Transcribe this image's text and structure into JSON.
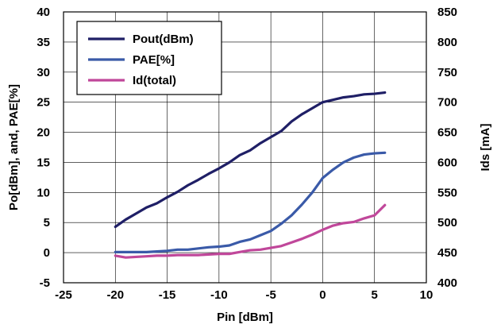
{
  "chart_data": {
    "type": "line",
    "xlabel": "Pin [dBm]",
    "ylabel": "Po[dBm], and, PAE[%]",
    "y2label": "Ids [mA]",
    "xlim": [
      -25,
      10
    ],
    "ylim": [
      -5,
      40
    ],
    "y2lim": [
      400,
      850
    ],
    "x_ticks": [
      "-25",
      "-20",
      "-15",
      "-10",
      "-5",
      "0",
      "5",
      "10"
    ],
    "y_ticks": [
      "-5",
      "0",
      "5",
      "10",
      "15",
      "20",
      "25",
      "30",
      "35",
      "40"
    ],
    "y2_ticks": [
      "400",
      "450",
      "500",
      "550",
      "600",
      "650",
      "700",
      "750",
      "800",
      "850"
    ],
    "grid": true,
    "legend_position": "top-left",
    "series": [
      {
        "name": "Pout(dBm)",
        "axis": "left",
        "color": "#1f1f66",
        "x": [
          -20,
          -19,
          -18,
          -17,
          -16,
          -15,
          -14,
          -13,
          -12,
          -11,
          -10,
          -9,
          -8,
          -7,
          -6,
          -5,
          -4,
          -3,
          -2,
          -1,
          0,
          1,
          2,
          3,
          4,
          5,
          6
        ],
        "y": [
          4.3,
          5.5,
          6.5,
          7.5,
          8.2,
          9.2,
          10.1,
          11.2,
          12.1,
          13.1,
          14.0,
          15.0,
          16.2,
          17.0,
          18.2,
          19.2,
          20.2,
          21.8,
          23.0,
          24.0,
          25.0,
          25.4,
          25.8,
          26.0,
          26.3,
          26.4,
          26.6
        ]
      },
      {
        "name": "PAE[%]",
        "axis": "left",
        "color": "#3a5aa8",
        "x": [
          -20,
          -19,
          -18,
          -17,
          -16,
          -15,
          -14,
          -13,
          -12,
          -11,
          -10,
          -9,
          -8,
          -7,
          -6,
          -5,
          -4,
          -3,
          -2,
          -1,
          0,
          1,
          2,
          3,
          4,
          5,
          6
        ],
        "y": [
          0.1,
          0.1,
          0.1,
          0.1,
          0.2,
          0.3,
          0.5,
          0.5,
          0.7,
          0.9,
          1.0,
          1.2,
          1.8,
          2.2,
          2.9,
          3.6,
          4.8,
          6.2,
          8.0,
          10.0,
          12.4,
          13.8,
          15.0,
          15.8,
          16.3,
          16.5,
          16.6
        ]
      },
      {
        "name": "Id(total)",
        "axis": "right",
        "color": "#c0479a",
        "x": [
          -20,
          -19,
          -18,
          -17,
          -16,
          -15,
          -14,
          -13,
          -12,
          -11,
          -10,
          -9,
          -8,
          -7,
          -6,
          -5,
          -4,
          -3,
          -2,
          -1,
          0,
          1,
          2,
          3,
          4,
          5,
          6
        ],
        "y": [
          445,
          442,
          443,
          444,
          445,
          445,
          446,
          446,
          446,
          447,
          448,
          448,
          451,
          454,
          455,
          458,
          461,
          467,
          473,
          480,
          488,
          495,
          499,
          501,
          507,
          512,
          529
        ]
      }
    ]
  }
}
